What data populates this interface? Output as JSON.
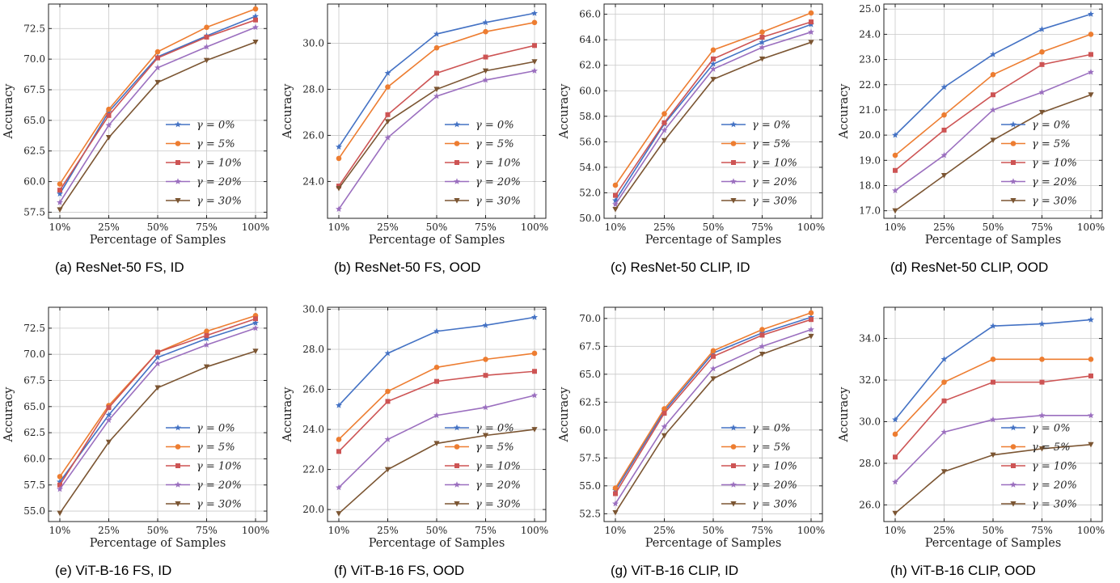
{
  "figure": {
    "series_styles": [
      {
        "color": "#4472c4",
        "marker": "star"
      },
      {
        "color": "#ed7d31",
        "marker": "circle"
      },
      {
        "color": "#cd5454",
        "marker": "square"
      },
      {
        "color": "#9b6fbf",
        "marker": "star"
      },
      {
        "color": "#7b5532",
        "marker": "triangle-down"
      }
    ]
  },
  "chart_data": [
    {
      "type": "line",
      "caption": "(a) ResNet-50 FS, ID",
      "xlabel": "Percentage of Samples",
      "ylabel": "Accuracy",
      "categories": [
        "10%",
        "25%",
        "50%",
        "75%",
        "100%"
      ],
      "ylim": [
        57.0,
        74.5
      ],
      "yticks": [
        57.5,
        60.0,
        62.5,
        65.0,
        67.5,
        70.0,
        72.5
      ],
      "ytick_labels": [
        "57.5",
        "60.0",
        "62.5",
        "65.0",
        "67.5",
        "70.0",
        "72.5"
      ],
      "legend_position": "lower-right",
      "series": [
        {
          "name": "γ = 0%",
          "values": [
            59.0,
            65.7,
            70.2,
            71.9,
            73.5
          ]
        },
        {
          "name": "γ = 5%",
          "values": [
            59.8,
            65.9,
            70.6,
            72.6,
            74.1
          ]
        },
        {
          "name": "γ = 10%",
          "values": [
            59.3,
            65.4,
            70.1,
            71.8,
            73.2
          ]
        },
        {
          "name": "γ = 20%",
          "values": [
            58.3,
            64.6,
            69.3,
            71.0,
            72.6
          ]
        },
        {
          "name": "γ = 30%",
          "values": [
            57.7,
            63.6,
            68.1,
            69.9,
            71.4
          ]
        }
      ]
    },
    {
      "type": "line",
      "caption": "(b) ResNet-50 FS, OOD",
      "xlabel": "Percentage of Samples",
      "ylabel": "Accuracy",
      "categories": [
        "10%",
        "25%",
        "50%",
        "75%",
        "100%"
      ],
      "ylim": [
        22.4,
        31.7
      ],
      "yticks": [
        24.0,
        26.0,
        28.0,
        30.0
      ],
      "ytick_labels": [
        "24.0",
        "26.0",
        "28.0",
        "30.0"
      ],
      "legend_position": "lower-right",
      "series": [
        {
          "name": "γ = 0%",
          "values": [
            25.5,
            28.7,
            30.4,
            30.9,
            31.3
          ]
        },
        {
          "name": "γ = 5%",
          "values": [
            25.0,
            28.1,
            29.8,
            30.5,
            30.9
          ]
        },
        {
          "name": "γ = 10%",
          "values": [
            23.8,
            26.9,
            28.7,
            29.4,
            29.9
          ]
        },
        {
          "name": "γ = 20%",
          "values": [
            22.8,
            25.9,
            27.7,
            28.4,
            28.8
          ]
        },
        {
          "name": "γ = 30%",
          "values": [
            23.7,
            26.6,
            28.0,
            28.8,
            29.2
          ]
        }
      ]
    },
    {
      "type": "line",
      "caption": "(c) ResNet-50 CLIP, ID",
      "xlabel": "Percentage of Samples",
      "ylabel": "Accuracy",
      "categories": [
        "10%",
        "25%",
        "50%",
        "75%",
        "100%"
      ],
      "ylim": [
        50.0,
        66.8
      ],
      "yticks": [
        50.0,
        52.0,
        54.0,
        56.0,
        58.0,
        60.0,
        62.0,
        64.0,
        66.0
      ],
      "ytick_labels": [
        "50.0",
        "52.0",
        "54.0",
        "56.0",
        "58.0",
        "60.0",
        "62.0",
        "64.0",
        "66.0"
      ],
      "legend_position": "lower-right",
      "series": [
        {
          "name": "γ = 0%",
          "values": [
            51.4,
            57.4,
            62.1,
            63.8,
            65.2
          ]
        },
        {
          "name": "γ = 5%",
          "values": [
            52.6,
            58.2,
            63.2,
            64.6,
            66.1
          ]
        },
        {
          "name": "γ = 10%",
          "values": [
            51.8,
            57.5,
            62.5,
            64.2,
            65.4
          ]
        },
        {
          "name": "γ = 20%",
          "values": [
            51.1,
            56.9,
            61.7,
            63.4,
            64.6
          ]
        },
        {
          "name": "γ = 30%",
          "values": [
            50.7,
            56.1,
            60.9,
            62.5,
            63.8
          ]
        }
      ]
    },
    {
      "type": "line",
      "caption": "(d) ResNet-50 CLIP, OOD",
      "xlabel": "Percentage of Samples",
      "ylabel": "Accuracy",
      "categories": [
        "10%",
        "25%",
        "50%",
        "75%",
        "100%"
      ],
      "ylim": [
        16.7,
        25.2
      ],
      "yticks": [
        17.0,
        18.0,
        19.0,
        20.0,
        21.0,
        22.0,
        23.0,
        24.0,
        25.0
      ],
      "ytick_labels": [
        "17.0",
        "18.0",
        "19.0",
        "20.0",
        "21.0",
        "22.0",
        "23.0",
        "24.0",
        "25.0"
      ],
      "legend_position": "lower-right",
      "series": [
        {
          "name": "γ = 0%",
          "values": [
            20.0,
            21.9,
            23.2,
            24.2,
            24.8
          ]
        },
        {
          "name": "γ = 5%",
          "values": [
            19.2,
            20.8,
            22.4,
            23.3,
            24.0
          ]
        },
        {
          "name": "γ = 10%",
          "values": [
            18.6,
            20.2,
            21.6,
            22.8,
            23.2
          ]
        },
        {
          "name": "γ = 20%",
          "values": [
            17.8,
            19.2,
            21.0,
            21.7,
            22.5
          ]
        },
        {
          "name": "γ = 30%",
          "values": [
            17.0,
            18.4,
            19.8,
            20.9,
            21.6
          ]
        }
      ]
    },
    {
      "type": "line",
      "caption": "(e) ViT-B-16 FS, ID",
      "xlabel": "Percentage of Samples",
      "ylabel": "Accuracy",
      "categories": [
        "10%",
        "25%",
        "50%",
        "75%",
        "100%"
      ],
      "ylim": [
        54.0,
        74.5
      ],
      "yticks": [
        55.0,
        57.5,
        60.0,
        62.5,
        65.0,
        67.5,
        70.0,
        72.5
      ],
      "ytick_labels": [
        "55.0",
        "57.5",
        "60.0",
        "62.5",
        "65.0",
        "67.5",
        "70.0",
        "72.5"
      ],
      "legend_position": "lower-right",
      "series": [
        {
          "name": "γ = 0%",
          "values": [
            57.8,
            64.2,
            69.7,
            71.5,
            73.0
          ]
        },
        {
          "name": "γ = 5%",
          "values": [
            58.3,
            65.1,
            70.2,
            72.2,
            73.7
          ]
        },
        {
          "name": "γ = 10%",
          "values": [
            57.5,
            64.9,
            70.2,
            71.8,
            73.4
          ]
        },
        {
          "name": "γ = 20%",
          "values": [
            57.1,
            63.7,
            69.1,
            70.9,
            72.5
          ]
        },
        {
          "name": "γ = 30%",
          "values": [
            54.8,
            61.6,
            66.8,
            68.8,
            70.3
          ]
        }
      ]
    },
    {
      "type": "line",
      "caption": "(f) ViT-B-16 FS, OOD",
      "xlabel": "Percentage of Samples",
      "ylabel": "Accuracy",
      "categories": [
        "10%",
        "25%",
        "50%",
        "75%",
        "100%"
      ],
      "ylim": [
        19.4,
        30.1
      ],
      "yticks": [
        20.0,
        22.0,
        24.0,
        26.0,
        28.0,
        30.0
      ],
      "ytick_labels": [
        "20.0",
        "22.0",
        "24.0",
        "26.0",
        "28.0",
        "30.0"
      ],
      "legend_position": "lower-right",
      "series": [
        {
          "name": "γ = 0%",
          "values": [
            25.2,
            27.8,
            28.9,
            29.2,
            29.6
          ]
        },
        {
          "name": "γ = 5%",
          "values": [
            23.5,
            25.9,
            27.1,
            27.5,
            27.8
          ]
        },
        {
          "name": "γ = 10%",
          "values": [
            22.9,
            25.4,
            26.4,
            26.7,
            26.9
          ]
        },
        {
          "name": "γ = 20%",
          "values": [
            21.1,
            23.5,
            24.7,
            25.1,
            25.7
          ]
        },
        {
          "name": "γ = 30%",
          "values": [
            19.8,
            22.0,
            23.3,
            23.7,
            24.0
          ]
        }
      ]
    },
    {
      "type": "line",
      "caption": "(g) ViT-B-16 CLIP, ID",
      "xlabel": "Percentage of Samples",
      "ylabel": "Accuracy",
      "categories": [
        "10%",
        "25%",
        "50%",
        "75%",
        "100%"
      ],
      "ylim": [
        51.8,
        71.0
      ],
      "yticks": [
        52.5,
        55.0,
        57.5,
        60.0,
        62.5,
        65.0,
        67.5,
        70.0
      ],
      "ytick_labels": [
        "52.5",
        "55.0",
        "57.5",
        "60.0",
        "62.5",
        "65.0",
        "67.5",
        "70.0"
      ],
      "legend_position": "lower-right",
      "series": [
        {
          "name": "γ = 0%",
          "values": [
            54.6,
            61.7,
            66.9,
            68.7,
            70.1
          ]
        },
        {
          "name": "γ = 5%",
          "values": [
            54.8,
            61.9,
            67.1,
            69.0,
            70.5
          ]
        },
        {
          "name": "γ = 10%",
          "values": [
            54.3,
            61.5,
            66.6,
            68.5,
            69.9
          ]
        },
        {
          "name": "γ = 20%",
          "values": [
            53.4,
            60.3,
            65.5,
            67.5,
            69.0
          ]
        },
        {
          "name": "γ = 30%",
          "values": [
            52.6,
            59.5,
            64.6,
            66.8,
            68.4
          ]
        }
      ]
    },
    {
      "type": "line",
      "caption": "(h) ViT-B-16 CLIP, OOD",
      "xlabel": "Percentage of Samples",
      "ylabel": "Accuracy",
      "categories": [
        "10%",
        "25%",
        "50%",
        "75%",
        "100%"
      ],
      "ylim": [
        25.2,
        35.5
      ],
      "yticks": [
        26.0,
        28.0,
        30.0,
        32.0,
        34.0
      ],
      "ytick_labels": [
        "26.0",
        "28.0",
        "30.0",
        "32.0",
        "34.0"
      ],
      "legend_position": "lower-right",
      "series": [
        {
          "name": "γ = 0%",
          "values": [
            30.1,
            33.0,
            34.6,
            34.7,
            34.9
          ]
        },
        {
          "name": "γ = 5%",
          "values": [
            29.4,
            31.9,
            33.0,
            33.0,
            33.0
          ]
        },
        {
          "name": "γ = 10%",
          "values": [
            28.3,
            31.0,
            31.9,
            31.9,
            32.2
          ]
        },
        {
          "name": "γ = 20%",
          "values": [
            27.1,
            29.5,
            30.1,
            30.3,
            30.3
          ]
        },
        {
          "name": "γ = 30%",
          "values": [
            25.6,
            27.6,
            28.4,
            28.7,
            28.9
          ]
        }
      ]
    }
  ]
}
